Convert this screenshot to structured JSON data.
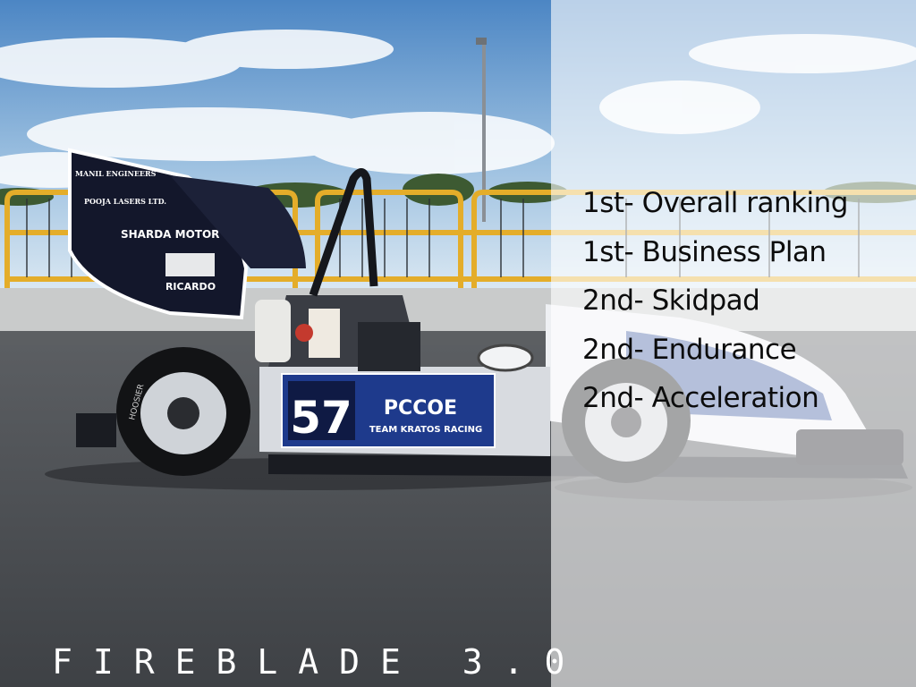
{
  "slide": {
    "title": "FIREBLADE 3.0",
    "rankings": [
      "1st- Overall ranking",
      "1st- Business Plan",
      "2nd- Skidpad",
      "2nd- Endurance",
      "2nd- Acceleration"
    ]
  },
  "car": {
    "number": "57",
    "team_name": "PCCOE",
    "team_subtitle": "TEAM KRATOS RACING",
    "sponsors": [
      "MANIL ENGINEERS",
      "POOJA LASERS LTD.",
      "SHARDA MOTOR",
      "RICARDO"
    ],
    "tyre_brand": "HOOSIER",
    "colors": {
      "wing": "#13172b",
      "number_panel": "#1e3a8c",
      "fence": "#e4ad2a"
    }
  }
}
